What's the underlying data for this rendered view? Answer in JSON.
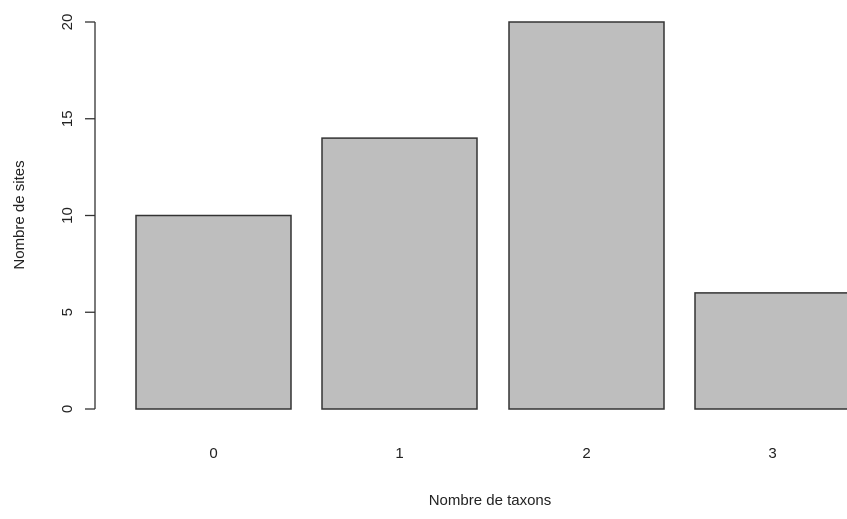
{
  "chart_data": {
    "type": "bar",
    "categories": [
      "0",
      "1",
      "2",
      "3"
    ],
    "values": [
      10,
      14,
      20,
      6
    ],
    "title": "",
    "xlabel": "Nombre de taxons",
    "ylabel": "Nombre de sites",
    "ylim": [
      0,
      20
    ],
    "yticks": [
      "0",
      "5",
      "10",
      "15",
      "20"
    ],
    "grid": false,
    "legend": "none",
    "colors": {
      "bar_fill": "#bebebe",
      "bar_stroke": "#333333",
      "axis": "#333333",
      "text": "#222222"
    }
  }
}
